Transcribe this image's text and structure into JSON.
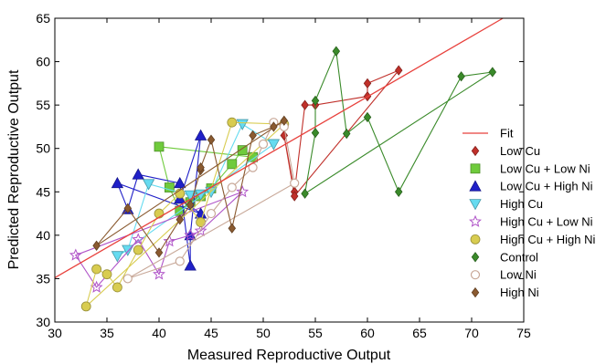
{
  "chart_data": {
    "type": "scatter",
    "xlabel": "Measured Reproductive Output",
    "ylabel": "Predicted Reproductive Output",
    "xlim": [
      30,
      75
    ],
    "ylim": [
      30,
      65
    ],
    "xticks": [
      30,
      35,
      40,
      45,
      50,
      55,
      60,
      65,
      70,
      75
    ],
    "yticks": [
      30,
      35,
      40,
      45,
      50,
      55,
      60,
      65
    ],
    "grid": false,
    "legend_position": "right",
    "fit": {
      "name": "Fit",
      "color": "#e8413c",
      "x": [
        30,
        73
      ],
      "y": [
        35.1,
        65
      ]
    },
    "series": [
      {
        "name": "Low Cu",
        "marker": "diamond",
        "color": "#c0302a",
        "x": [
          52,
          53,
          54,
          55,
          60,
          60,
          63,
          53
        ],
        "y": [
          51.5,
          45,
          55,
          55,
          56,
          57.5,
          59,
          44.5
        ]
      },
      {
        "name": "Low Cu + Low Ni",
        "marker": "square",
        "color": "#6fcb3c",
        "x": [
          40,
          41,
          42,
          43,
          44,
          45,
          47,
          48,
          49
        ],
        "y": [
          50.2,
          45.5,
          42.8,
          43.8,
          44.5,
          45.4,
          48.2,
          49.8,
          49
        ]
      },
      {
        "name": "Low Cu + High Ni",
        "marker": "triangle",
        "color": "#2020c8",
        "x": [
          36,
          37,
          38,
          42,
          43,
          43,
          44,
          42,
          44
        ],
        "y": [
          46,
          43,
          47,
          46,
          36.5,
          40,
          51.5,
          44.2,
          42.5
        ]
      },
      {
        "name": "High Cu",
        "marker": "triangle-down",
        "color": "#66dbf0",
        "x": [
          36,
          37,
          39,
          43,
          44,
          45,
          48,
          51
        ],
        "y": [
          37.6,
          38.3,
          45.9,
          44.6,
          44.7,
          45,
          52.8,
          50.5
        ]
      },
      {
        "name": "High Cu + Low Ni",
        "marker": "star",
        "color": "#b054c8",
        "x": [
          32,
          34,
          38,
          40,
          41,
          43,
          44,
          48
        ],
        "y": [
          37.7,
          34,
          39.5,
          35.5,
          39.3,
          40,
          40.5,
          45
        ]
      },
      {
        "name": "High Cu + High Ni",
        "marker": "circle",
        "color": "#d8cc50",
        "x": [
          33,
          34,
          35,
          36,
          38,
          40,
          42,
          44,
          47,
          52
        ],
        "y": [
          31.8,
          36.1,
          35.5,
          34,
          38.3,
          42.5,
          44.8,
          41.5,
          53,
          52.8
        ]
      },
      {
        "name": "Control",
        "marker": "diamond",
        "color": "#3a8a2a",
        "x": [
          54,
          55,
          55,
          57,
          58,
          60,
          63,
          69,
          72
        ],
        "y": [
          44.8,
          51.8,
          55.5,
          61.2,
          51.7,
          53.6,
          45,
          58.3,
          58.8
        ]
      },
      {
        "name": "Low Ni",
        "marker": "circle-open",
        "color": "#c8a898",
        "x": [
          37,
          42,
          45,
          47,
          49,
          50,
          51,
          52,
          53
        ],
        "y": [
          35,
          37,
          42.5,
          45.5,
          47.8,
          50.5,
          53,
          52.5,
          46
        ]
      },
      {
        "name": "High Ni",
        "marker": "diamond",
        "color": "#8a5a30",
        "x": [
          34,
          37,
          40,
          42,
          43,
          44,
          44,
          45,
          47,
          49,
          51,
          52
        ],
        "y": [
          38.8,
          43.1,
          38,
          41.8,
          43.5,
          47.5,
          47.8,
          51,
          40.8,
          51.5,
          52.5,
          53.2
        ]
      }
    ],
    "legend": [
      "Fit",
      "Low Cu",
      "Low Cu + Low Ni",
      "Low Cu + High Ni",
      "High Cu",
      "High Cu + Low Ni",
      "High Cu + High Ni",
      "Control",
      "Low Ni",
      "High Ni"
    ]
  }
}
